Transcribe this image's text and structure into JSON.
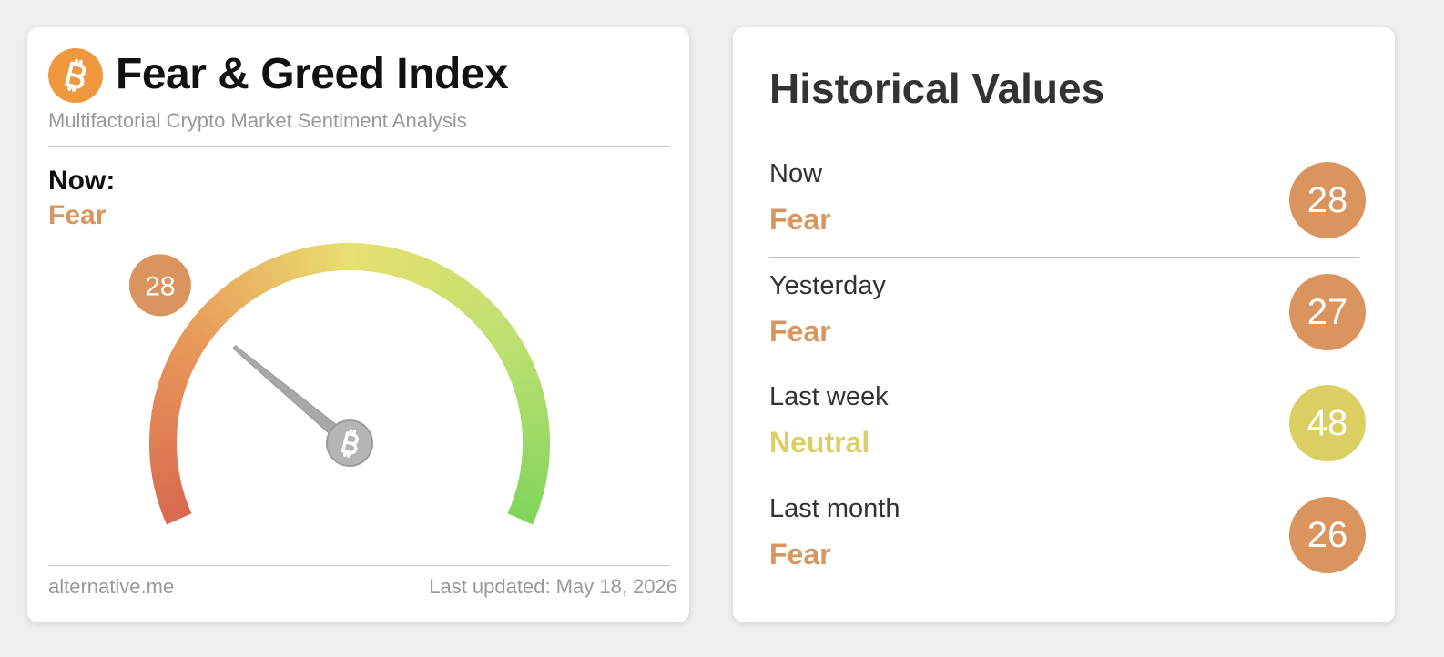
{
  "header": {
    "title": "Fear & Greed Index",
    "subtitle": "Multifactorial Crypto Market Sentiment Analysis"
  },
  "now": {
    "label": "Now:",
    "classification": "Fear",
    "value": 28,
    "color": "#d9955d"
  },
  "gauge": {
    "range": [
      0,
      100
    ]
  },
  "footer": {
    "source": "alternative.me",
    "updated": "Last updated: May 18, 2026"
  },
  "history": {
    "title": "Historical Values",
    "rows": [
      {
        "label": "Now",
        "classification": "Fear",
        "value": 28,
        "color": "#d9955d"
      },
      {
        "label": "Yesterday",
        "classification": "Fear",
        "value": 27,
        "color": "#d9955d"
      },
      {
        "label": "Last week",
        "classification": "Neutral",
        "value": 48,
        "color": "#dccf62"
      },
      {
        "label": "Last month",
        "classification": "Fear",
        "value": 26,
        "color": "#d9955d"
      }
    ]
  }
}
